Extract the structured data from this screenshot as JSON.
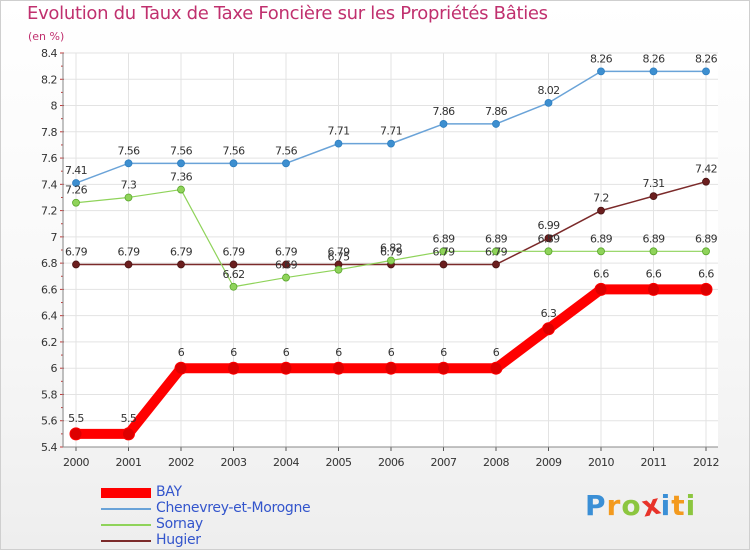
{
  "title": "Evolution du Taux de Taxe Foncière sur les Propriétés Bâties",
  "unit": "(en %)",
  "brand": {
    "letters": [
      "P",
      "r",
      "o",
      "x",
      "i",
      "t",
      "i"
    ],
    "colors": [
      "#3a8fd6",
      "#f39a1e",
      "#8cc63f",
      "#e8332a",
      "#3a8fd6",
      "#f39a1e",
      "#8cc63f"
    ]
  },
  "chart_data": {
    "type": "line",
    "title": "Evolution du Taux de Taxe Foncière sur les Propriétés Bâties",
    "ylabel": "(en %)",
    "xlabel": "",
    "x": [
      "2000",
      "2001",
      "2002",
      "2003",
      "2004",
      "2005",
      "2006",
      "2007",
      "2008",
      "2009",
      "2010",
      "2011",
      "2012"
    ],
    "ylim": [
      5.4,
      8.4
    ],
    "yticks": [
      "5.4",
      "5.6",
      "5.8",
      "6",
      "6.2",
      "6.4",
      "6.6",
      "6.8",
      "7",
      "7.2",
      "7.4",
      "7.6",
      "7.8",
      "8",
      "8.2",
      "8.4"
    ],
    "grid": true,
    "legend_position": "bottom-left",
    "series": [
      {
        "name": "BAY",
        "color": "#ff0000",
        "values": [
          5.5,
          5.5,
          6,
          6,
          6,
          6,
          6,
          6,
          6,
          6.3,
          6.6,
          6.6,
          6.6
        ],
        "labels": [
          "5.5",
          "5.5",
          "6",
          "6",
          "6",
          "6",
          "6",
          "6",
          "6",
          "6.3",
          "6.6",
          "6.6",
          "6.6"
        ]
      },
      {
        "name": "Chenevrey-et-Morogne",
        "color": "#6aa3d8",
        "values": [
          7.41,
          7.56,
          7.56,
          7.56,
          7.56,
          7.71,
          7.71,
          7.86,
          7.86,
          8.02,
          8.26,
          8.26,
          8.26
        ],
        "labels": [
          "7.41",
          "7.56",
          "7.56",
          "7.56",
          "7.56",
          "7.71",
          "7.71",
          "7.86",
          "7.86",
          "8.02",
          "8.26",
          "8.26",
          "8.26"
        ]
      },
      {
        "name": "Sornay",
        "color": "#8fd35a",
        "values": [
          7.26,
          7.3,
          7.36,
          6.62,
          6.69,
          6.75,
          6.82,
          6.89,
          6.89,
          6.89,
          6.89,
          6.89,
          6.89
        ],
        "labels": [
          "7.26",
          "7.3",
          "7.36",
          "6.62",
          "6.69",
          "6.75",
          "6.82",
          "6.89",
          "6.89",
          "6.89",
          "6.89",
          "6.89",
          "6.89"
        ]
      },
      {
        "name": "Hugier",
        "color": "#7b2a2a",
        "values": [
          6.79,
          6.79,
          6.79,
          6.79,
          6.79,
          6.79,
          6.79,
          6.79,
          6.79,
          6.99,
          7.2,
          7.31,
          7.42
        ],
        "labels": [
          "6.79",
          "6.79",
          "6.79",
          "6.79",
          "6.79",
          "6.79",
          "6.79",
          "6.79",
          "6.79",
          "6.99",
          "7.2",
          "7.31",
          "7.42"
        ]
      }
    ]
  }
}
